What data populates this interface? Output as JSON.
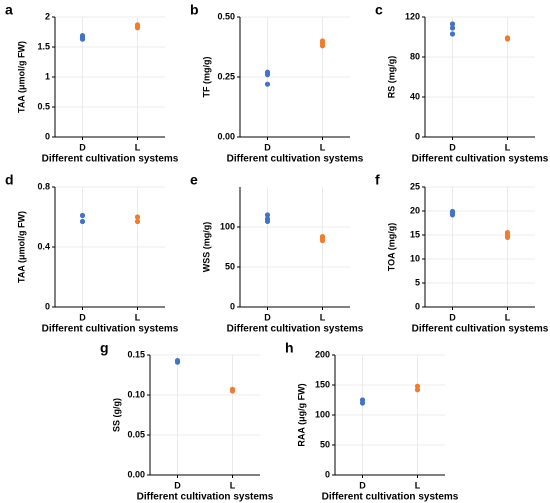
{
  "chart_data": [
    {
      "type": "strip",
      "panel": "a",
      "ylabel": "TAA (μmol/g FW)",
      "xlabel": "Different cultivation systems",
      "categories": [
        "D",
        "L"
      ],
      "colors": [
        "#4472c4",
        "#ed7d31"
      ],
      "values": [
        [
          1.63,
          1.66,
          1.69
        ],
        [
          1.82,
          1.85,
          1.87
        ]
      ],
      "ylim": [
        0,
        2
      ],
      "yticks": [
        0,
        0.5,
        1,
        1.5,
        2
      ],
      "grid": true
    },
    {
      "type": "strip",
      "panel": "b",
      "ylabel": "TF (mg/g)",
      "xlabel": "Different cultivation systems",
      "categories": [
        "D",
        "L"
      ],
      "colors": [
        "#4472c4",
        "#ed7d31"
      ],
      "values": [
        [
          0.22,
          0.26,
          0.27
        ],
        [
          0.38,
          0.39,
          0.4
        ]
      ],
      "ylim": [
        0,
        0.5
      ],
      "yticks": [
        {
          "value": 0,
          "label": "0.00"
        },
        {
          "value": 0.25,
          "label": "0.25"
        },
        {
          "value": 0.5,
          "label": "0.50"
        }
      ],
      "grid": true
    },
    {
      "type": "strip",
      "panel": "c",
      "ylabel": "RS (mg/g)",
      "xlabel": "Different cultivation systems",
      "categories": [
        "D",
        "L"
      ],
      "colors": [
        "#4472c4",
        "#ed7d31"
      ],
      "values": [
        [
          103,
          109,
          113
        ],
        [
          98,
          99,
          99
        ]
      ],
      "ylim": [
        0,
        120
      ],
      "yticks": [
        0,
        40,
        80,
        120
      ],
      "grid": true
    },
    {
      "type": "strip",
      "panel": "d",
      "ylabel": "TAA (μmol/g FW)",
      "xlabel": "Different cultivation systems",
      "categories": [
        "D",
        "L"
      ],
      "colors": [
        "#4472c4",
        "#ed7d31"
      ],
      "values": [
        [
          0.57,
          0.61
        ],
        [
          0.57,
          0.6
        ]
      ],
      "ylim": [
        0,
        0.8
      ],
      "yticks": [
        0,
        0.4,
        0.8
      ],
      "grid": true
    },
    {
      "type": "strip",
      "panel": "e",
      "ylabel": "WSS (mg/g)",
      "xlabel": "Different cultivation systems",
      "categories": [
        "D",
        "L"
      ],
      "colors": [
        "#4472c4",
        "#ed7d31"
      ],
      "values": [
        [
          107,
          110,
          115
        ],
        [
          83,
          86,
          88
        ]
      ],
      "ylim": [
        0,
        150
      ],
      "yticks": [
        0,
        50,
        100
      ],
      "grid": true
    },
    {
      "type": "strip",
      "panel": "f",
      "ylabel": "TOA (mg/g)",
      "xlabel": "Different cultivation systems",
      "categories": [
        "D",
        "L"
      ],
      "colors": [
        "#4472c4",
        "#ed7d31"
      ],
      "values": [
        [
          19.2,
          19.6,
          19.9
        ],
        [
          14.5,
          15.0,
          15.5
        ]
      ],
      "ylim": [
        0,
        25
      ],
      "yticks": [
        0,
        5,
        10,
        15,
        20,
        25
      ],
      "grid": true
    },
    {
      "type": "strip",
      "panel": "g",
      "ylabel": "SS (g/g)",
      "xlabel": "Different cultivation systems",
      "categories": [
        "D",
        "L"
      ],
      "colors": [
        "#4472c4",
        "#ed7d31"
      ],
      "values": [
        [
          0.141,
          0.143
        ],
        [
          0.105,
          0.107
        ]
      ],
      "ylim": [
        0,
        0.15
      ],
      "yticks": [
        {
          "value": 0,
          "label": "0.00"
        },
        {
          "value": 0.05,
          "label": "0.05"
        },
        {
          "value": 0.1,
          "label": "0.10"
        },
        {
          "value": 0.15,
          "label": "0.15"
        }
      ],
      "grid": true
    },
    {
      "type": "strip",
      "panel": "h",
      "ylabel": "RAA (μg/g FW)",
      "xlabel": "Different cultivation systems",
      "categories": [
        "D",
        "L"
      ],
      "colors": [
        "#4472c4",
        "#ed7d31"
      ],
      "values": [
        [
          120,
          125
        ],
        [
          142,
          148
        ]
      ],
      "ylim": [
        0,
        200
      ],
      "yticks": [
        0,
        50,
        100,
        150,
        200
      ],
      "grid": true
    }
  ]
}
